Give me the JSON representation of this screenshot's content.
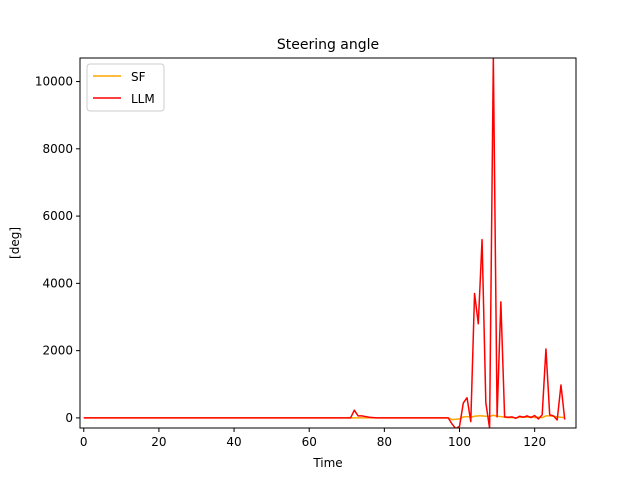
{
  "chart_data": {
    "type": "line",
    "title": "Steering angle",
    "xlabel": "Time",
    "ylabel": "[deg]",
    "xlim": [
      -1,
      131
    ],
    "ylim": [
      -300,
      10700
    ],
    "xticks": [
      0,
      20,
      40,
      60,
      80,
      100,
      120
    ],
    "yticks": [
      0,
      2000,
      4000,
      6000,
      8000,
      10000
    ],
    "grid": false,
    "legend_position": "top-left",
    "series": [
      {
        "name": "SF",
        "color": "#ffa500",
        "points": [
          [
            0,
            0
          ],
          [
            97,
            0
          ],
          [
            98,
            -50
          ],
          [
            99,
            -40
          ],
          [
            100,
            -30
          ],
          [
            101,
            30
          ],
          [
            102,
            40
          ],
          [
            103,
            20
          ],
          [
            104,
            50
          ],
          [
            105,
            60
          ],
          [
            106,
            60
          ],
          [
            107,
            50
          ],
          [
            108,
            40
          ],
          [
            109,
            80
          ],
          [
            110,
            50
          ],
          [
            111,
            40
          ],
          [
            112,
            20
          ],
          [
            113,
            10
          ],
          [
            114,
            10
          ],
          [
            115,
            0
          ],
          [
            116,
            20
          ],
          [
            117,
            30
          ],
          [
            118,
            20
          ],
          [
            119,
            30
          ],
          [
            120,
            10
          ],
          [
            121,
            20
          ],
          [
            122,
            10
          ],
          [
            123,
            60
          ],
          [
            124,
            60
          ],
          [
            125,
            50
          ],
          [
            126,
            30
          ],
          [
            127,
            20
          ],
          [
            128,
            10
          ]
        ]
      },
      {
        "name": "LLM",
        "color": "#ff0000",
        "points": [
          [
            0,
            0
          ],
          [
            71,
            0
          ],
          [
            72,
            230
          ],
          [
            73,
            60
          ],
          [
            74,
            60
          ],
          [
            75,
            40
          ],
          [
            76,
            20
          ],
          [
            77,
            10
          ],
          [
            78,
            0
          ],
          [
            97,
            0
          ],
          [
            98,
            -180
          ],
          [
            99,
            -320
          ],
          [
            100,
            -250
          ],
          [
            101,
            440
          ],
          [
            102,
            600
          ],
          [
            103,
            -110
          ],
          [
            104,
            3700
          ],
          [
            105,
            2800
          ],
          [
            106,
            5300
          ],
          [
            107,
            450
          ],
          [
            108,
            -300
          ],
          [
            109,
            10700
          ],
          [
            110,
            30
          ],
          [
            111,
            3450
          ],
          [
            112,
            30
          ],
          [
            113,
            20
          ],
          [
            114,
            30
          ],
          [
            115,
            -10
          ],
          [
            116,
            50
          ],
          [
            117,
            20
          ],
          [
            118,
            60
          ],
          [
            119,
            10
          ],
          [
            120,
            70
          ],
          [
            121,
            -30
          ],
          [
            122,
            90
          ],
          [
            123,
            2050
          ],
          [
            124,
            90
          ],
          [
            125,
            60
          ],
          [
            126,
            -60
          ],
          [
            127,
            980
          ],
          [
            128,
            -50
          ]
        ]
      }
    ]
  }
}
